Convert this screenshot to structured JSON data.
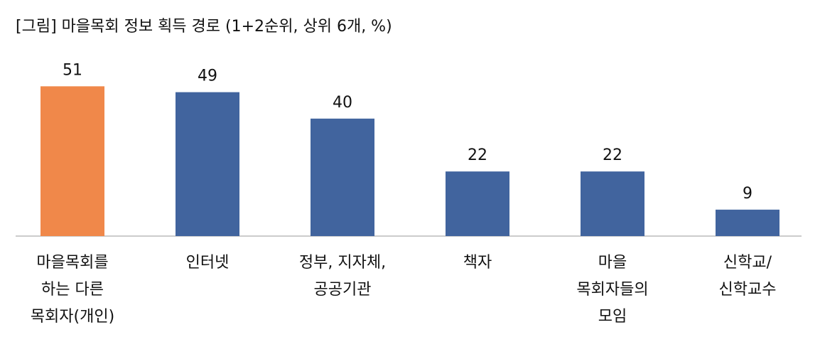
{
  "chart_data": {
    "type": "bar",
    "title": "[그림] 마을목회 정보 획득 경로 (1+2순위, 상위 6개, %)",
    "categories": [
      [
        "마을목회를",
        "하는 다른",
        "목회자(개인)"
      ],
      [
        "인터넷"
      ],
      [
        "정부, 지자체,",
        "공공기관"
      ],
      [
        "책자"
      ],
      [
        "마을",
        "목회자들의",
        "모임"
      ],
      [
        "신학교/",
        "신학교수"
      ]
    ],
    "values": [
      51,
      49,
      40,
      22,
      22,
      9
    ],
    "colors": [
      "#f0884a",
      "#41649e",
      "#41649e",
      "#41649e",
      "#41649e",
      "#41649e"
    ]
  }
}
